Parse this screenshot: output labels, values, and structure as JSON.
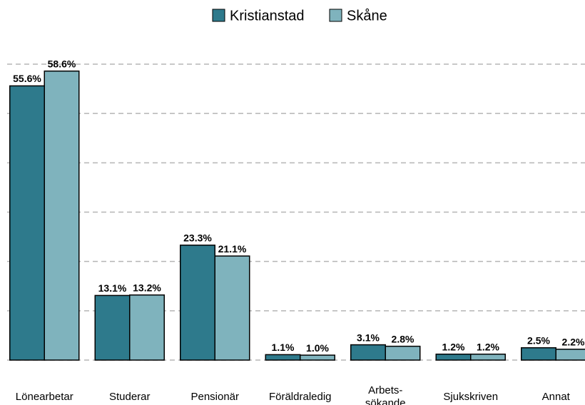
{
  "chart_data": {
    "type": "bar",
    "categories": [
      "Lönearbetar",
      "Studerar",
      "Pensionär",
      "Föräldraledig",
      "Arbets-\nsökande",
      "Sjukskriven",
      "Annat"
    ],
    "series": [
      {
        "name": "Kristianstad",
        "color": "#2e7a8c",
        "values": [
          55.6,
          13.1,
          23.3,
          1.1,
          3.1,
          1.2,
          2.5
        ],
        "value_labels": [
          "55.6%",
          "13.1%",
          "23.3%",
          "1.1%",
          "3.1%",
          "1.2%",
          "2.5%"
        ]
      },
      {
        "name": "Skåne",
        "color": "#7fb3bd",
        "values": [
          58.6,
          13.2,
          21.1,
          1.0,
          2.8,
          1.2,
          2.2
        ],
        "value_labels": [
          "58.6%",
          "13.2%",
          "21.1%",
          "1.0%",
          "2.8%",
          "1.2%",
          "2.2%"
        ]
      }
    ],
    "ylim": [
      0,
      60
    ],
    "yticks": [
      0,
      10,
      20,
      30,
      40,
      50,
      60
    ],
    "grid": true,
    "legend": "top"
  }
}
